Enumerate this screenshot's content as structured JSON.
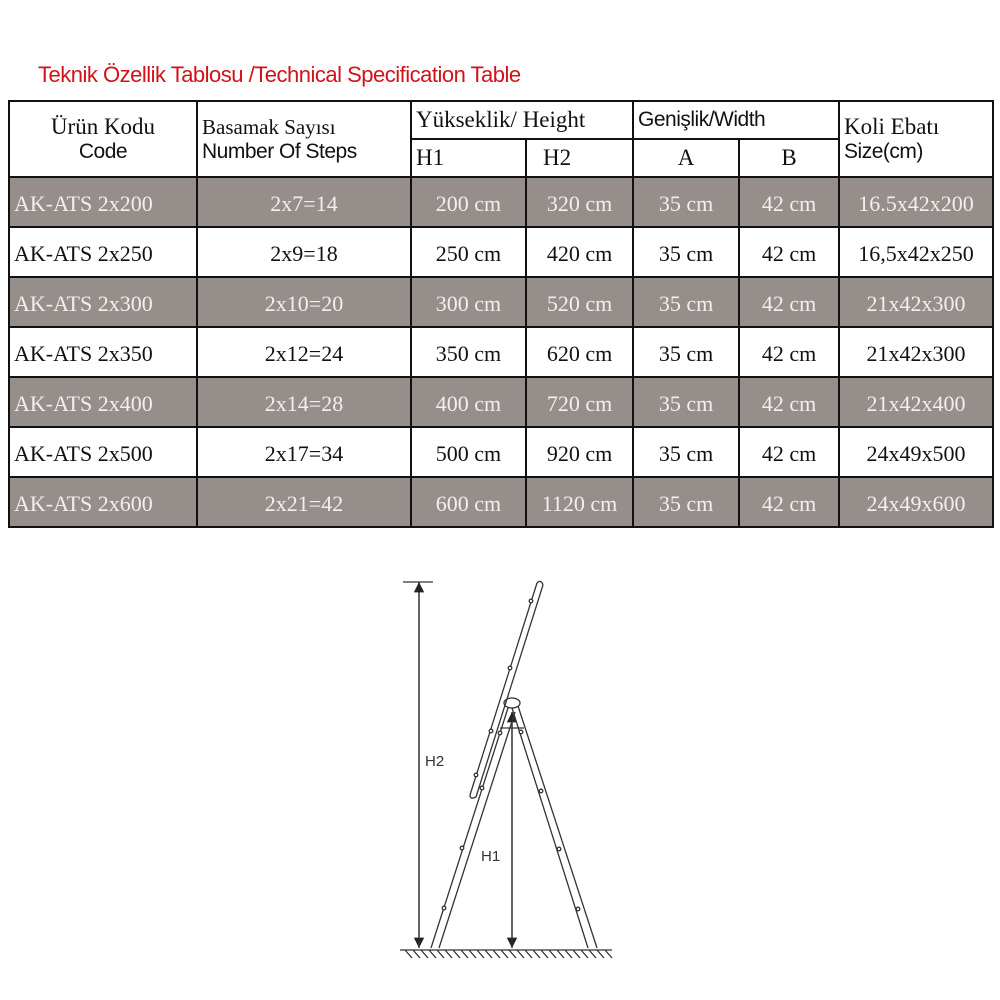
{
  "title": "Teknik Özellik Tablosu /Technical Specification Table",
  "header": {
    "code_tr": "Ürün Kodu",
    "code_en": "Code",
    "steps_tr": "Basamak Sayısı",
    "steps_en": "Number Of Steps",
    "height": "Yükseklik/ Height",
    "h1": "H1",
    "h2": "H2",
    "width": "Genişlik/Width",
    "a": "A",
    "b": "B",
    "box_tr": "Koli Ebatı",
    "box_en": "Size(cm)"
  },
  "rows": [
    {
      "code": "AK-ATS 2x200",
      "steps": "2x7=14",
      "h1": "200 cm",
      "h2": "320 cm",
      "a": "35 cm",
      "b": "42 cm",
      "size": "16.5x42x200"
    },
    {
      "code": "AK-ATS 2x250",
      "steps": "2x9=18",
      "h1": "250 cm",
      "h2": "420 cm",
      "a": "35 cm",
      "b": "42 cm",
      "size": "16,5x42x250"
    },
    {
      "code": "AK-ATS 2x300",
      "steps": "2x10=20",
      "h1": "300 cm",
      "h2": "520 cm",
      "a": "35 cm",
      "b": "42 cm",
      "size": "21x42x300"
    },
    {
      "code": "AK-ATS 2x350",
      "steps": "2x12=24",
      "h1": "350 cm",
      "h2": "620 cm",
      "a": "35 cm",
      "b": "42 cm",
      "size": "21x42x300"
    },
    {
      "code": "AK-ATS 2x400",
      "steps": "2x14=28",
      "h1": "400 cm",
      "h2": "720 cm",
      "a": "35 cm",
      "b": "42 cm",
      "size": "21x42x400"
    },
    {
      "code": "AK-ATS 2x500",
      "steps": "2x17=34",
      "h1": "500 cm",
      "h2": "920 cm",
      "a": "35 cm",
      "b": "42 cm",
      "size": "24x49x500"
    },
    {
      "code": "AK-ATS 2x600",
      "steps": "2x21=42",
      "h1": "600 cm",
      "h2": "1120 cm",
      "a": "35 cm",
      "b": "42 cm",
      "size": "24x49x600"
    }
  ],
  "diagram": {
    "h2_label": "H2",
    "h1_label": "H1"
  },
  "colors": {
    "title": "#d0121b",
    "shaded_row": "#958e8b"
  }
}
